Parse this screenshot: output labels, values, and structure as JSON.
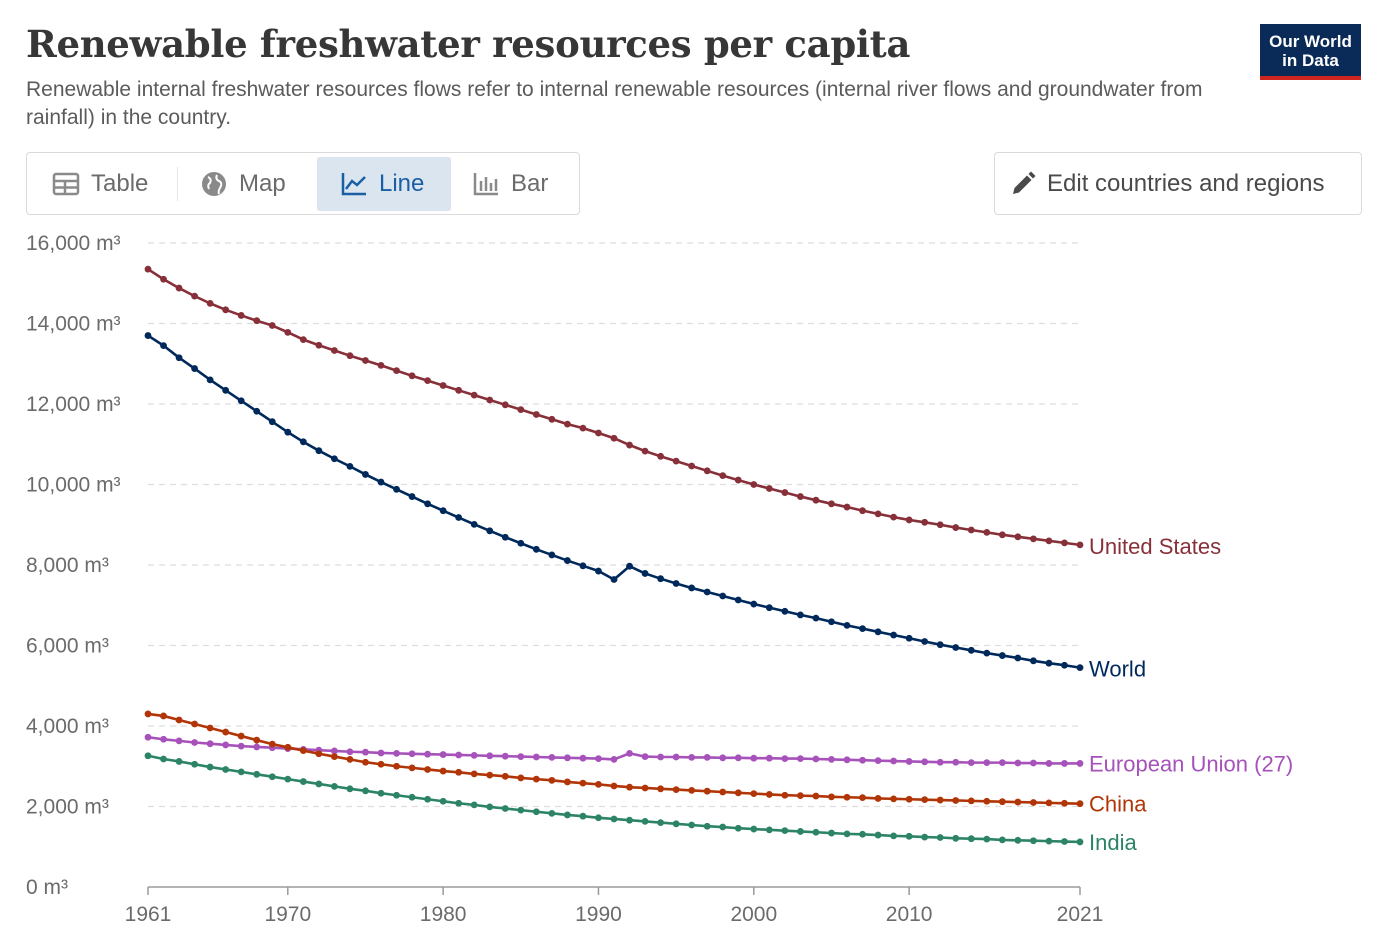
{
  "header": {
    "title": "Renewable freshwater resources per capita",
    "subtitle": "Renewable internal freshwater resources flows refer to internal renewable resources (internal river flows and groundwater from rainfall) in the country.",
    "logo_line1": "Our World",
    "logo_line2": "in Data"
  },
  "tabs": [
    {
      "label": "Table",
      "icon": "table-icon",
      "active": false
    },
    {
      "label": "Map",
      "icon": "globe-icon",
      "active": false
    },
    {
      "label": "Line",
      "icon": "line-chart-icon",
      "active": true
    },
    {
      "label": "Bar",
      "icon": "bar-chart-icon",
      "active": false
    }
  ],
  "edit_button": {
    "label": "Edit countries and regions",
    "icon": "pencil-icon"
  },
  "colors": {
    "United States": "#883039",
    "World": "#00295b",
    "European Union (27)": "#a652ba",
    "China": "#b13507",
    "India": "#2c8465"
  },
  "chart_data": {
    "type": "line",
    "xlabel": "",
    "ylabel": "",
    "x_start": 1961,
    "x_end": 2021,
    "xticks": [
      "1961",
      "1970",
      "1980",
      "1990",
      "2000",
      "2010",
      "2021"
    ],
    "yticks": [
      "0 m³",
      "2,000 m³",
      "4,000 m³",
      "6,000 m³",
      "8,000 m³",
      "10,000 m³",
      "12,000 m³",
      "14,000 m³",
      "16,000 m³"
    ],
    "ylim": [
      0,
      16000
    ],
    "grid": true,
    "legend": "inline labels at line ends (right)",
    "series": [
      {
        "name": "United States",
        "values": [
          15350,
          15100,
          14880,
          14680,
          14500,
          14340,
          14200,
          14070,
          13950,
          13780,
          13600,
          13460,
          13330,
          13200,
          13080,
          12960,
          12830,
          12700,
          12580,
          12460,
          12340,
          12220,
          12100,
          11980,
          11860,
          11740,
          11620,
          11500,
          11400,
          11280,
          11150,
          10980,
          10830,
          10700,
          10580,
          10460,
          10340,
          10220,
          10110,
          10000,
          9900,
          9800,
          9700,
          9610,
          9520,
          9440,
          9350,
          9270,
          9190,
          9120,
          9060,
          9000,
          8930,
          8870,
          8810,
          8750,
          8700,
          8650,
          8600,
          8550,
          8500
        ]
      },
      {
        "name": "World",
        "values": [
          13700,
          13450,
          13150,
          12880,
          12600,
          12340,
          12080,
          11820,
          11560,
          11300,
          11060,
          10840,
          10640,
          10450,
          10250,
          10060,
          9880,
          9700,
          9520,
          9350,
          9180,
          9010,
          8850,
          8690,
          8540,
          8390,
          8250,
          8110,
          7980,
          7850,
          7640,
          7970,
          7790,
          7660,
          7540,
          7430,
          7330,
          7230,
          7130,
          7030,
          6940,
          6850,
          6760,
          6680,
          6590,
          6500,
          6420,
          6340,
          6260,
          6180,
          6100,
          6020,
          5950,
          5880,
          5810,
          5750,
          5690,
          5620,
          5560,
          5510,
          5450
        ]
      },
      {
        "name": "European Union (27)",
        "values": [
          3720,
          3670,
          3630,
          3590,
          3560,
          3530,
          3500,
          3480,
          3460,
          3440,
          3420,
          3400,
          3380,
          3360,
          3350,
          3330,
          3320,
          3310,
          3300,
          3290,
          3280,
          3270,
          3260,
          3250,
          3240,
          3230,
          3220,
          3210,
          3200,
          3190,
          3170,
          3320,
          3240,
          3230,
          3230,
          3220,
          3220,
          3210,
          3210,
          3200,
          3200,
          3190,
          3190,
          3180,
          3170,
          3160,
          3150,
          3140,
          3130,
          3120,
          3110,
          3100,
          3100,
          3090,
          3090,
          3090,
          3080,
          3080,
          3070,
          3070,
          3070
        ]
      },
      {
        "name": "China",
        "values": [
          4300,
          4250,
          4150,
          4050,
          3950,
          3850,
          3750,
          3650,
          3550,
          3470,
          3390,
          3310,
          3240,
          3170,
          3100,
          3050,
          3000,
          2960,
          2920,
          2880,
          2850,
          2810,
          2780,
          2750,
          2710,
          2680,
          2650,
          2610,
          2580,
          2550,
          2510,
          2480,
          2460,
          2440,
          2420,
          2400,
          2380,
          2360,
          2340,
          2320,
          2300,
          2280,
          2270,
          2260,
          2240,
          2230,
          2220,
          2200,
          2190,
          2180,
          2170,
          2160,
          2150,
          2140,
          2130,
          2120,
          2110,
          2100,
          2090,
          2080,
          2070
        ]
      },
      {
        "name": "India",
        "values": [
          3260,
          3180,
          3120,
          3050,
          2980,
          2920,
          2860,
          2800,
          2740,
          2680,
          2620,
          2560,
          2500,
          2440,
          2390,
          2330,
          2280,
          2230,
          2180,
          2130,
          2080,
          2040,
          1990,
          1950,
          1910,
          1870,
          1830,
          1790,
          1760,
          1720,
          1690,
          1660,
          1630,
          1600,
          1570,
          1540,
          1510,
          1490,
          1460,
          1440,
          1420,
          1400,
          1380,
          1360,
          1340,
          1320,
          1310,
          1290,
          1270,
          1260,
          1240,
          1230,
          1210,
          1200,
          1190,
          1170,
          1160,
          1150,
          1140,
          1130,
          1120
        ]
      }
    ]
  }
}
